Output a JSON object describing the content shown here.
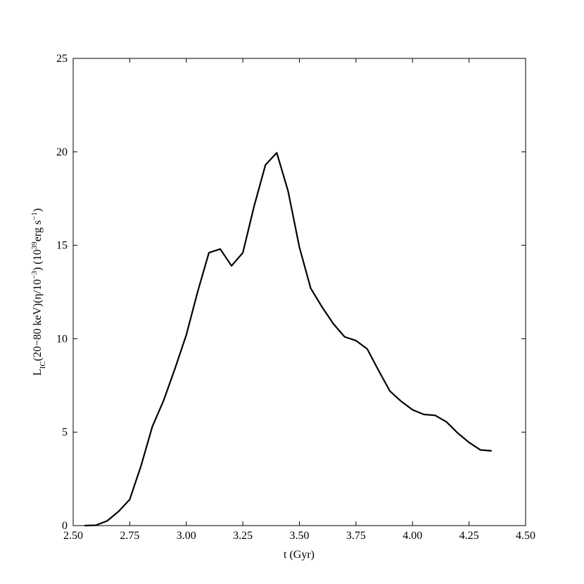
{
  "chart_data": {
    "type": "line",
    "x_label": "t (Gyr)",
    "y_label_parts": [
      {
        "text": "L",
        "script": "normal"
      },
      {
        "text": "IC",
        "script": "sub"
      },
      {
        "text": "(20−80 keV)(η/10",
        "script": "normal"
      },
      {
        "text": "−3",
        "script": "sup"
      },
      {
        "text": ") (10",
        "script": "normal"
      },
      {
        "text": "39",
        "script": "sup"
      },
      {
        "text": "erg s",
        "script": "normal"
      },
      {
        "text": "−1",
        "script": "sup"
      },
      {
        "text": ")",
        "script": "normal"
      }
    ],
    "x": [
      2.55,
      2.6,
      2.65,
      2.7,
      2.75,
      2.8,
      2.85,
      2.9,
      2.95,
      3.0,
      3.05,
      3.1,
      3.15,
      3.2,
      3.25,
      3.3,
      3.35,
      3.4,
      3.45,
      3.5,
      3.55,
      3.6,
      3.65,
      3.7,
      3.75,
      3.8,
      3.85,
      3.9,
      3.95,
      4.0,
      4.05,
      4.1,
      4.15,
      4.2,
      4.25,
      4.3,
      4.35
    ],
    "series": [
      {
        "color": "#000000",
        "values": [
          0,
          0.02,
          0.25,
          0.75,
          1.4,
          3.2,
          5.3,
          6.7,
          8.4,
          10.2,
          12.5,
          14.6,
          14.8,
          13.9,
          14.6,
          17.1,
          19.3,
          19.95,
          17.9,
          14.9,
          12.7,
          11.7,
          10.8,
          10.1,
          9.9,
          9.45,
          8.3,
          7.2,
          6.65,
          6.2,
          5.95,
          5.9,
          5.55,
          4.95,
          4.45,
          4.05,
          4.0
        ]
      }
    ],
    "xlim": [
      2.5,
      4.5
    ],
    "xticks": [
      {
        "value": 2.5,
        "label": "2.50"
      },
      {
        "value": 2.75,
        "label": "2.75"
      },
      {
        "value": 3.0,
        "label": "3.00"
      },
      {
        "value": 3.25,
        "label": "3.25"
      },
      {
        "value": 3.5,
        "label": "3.50"
      },
      {
        "value": 3.75,
        "label": "3.75"
      },
      {
        "value": 4.0,
        "label": "4.00"
      },
      {
        "value": 4.25,
        "label": "4.25"
      },
      {
        "value": 4.5,
        "label": "4.50"
      }
    ],
    "ylim": [
      0,
      25
    ],
    "yticks": [
      0,
      5,
      10,
      15,
      20,
      25
    ],
    "grid": false
  }
}
